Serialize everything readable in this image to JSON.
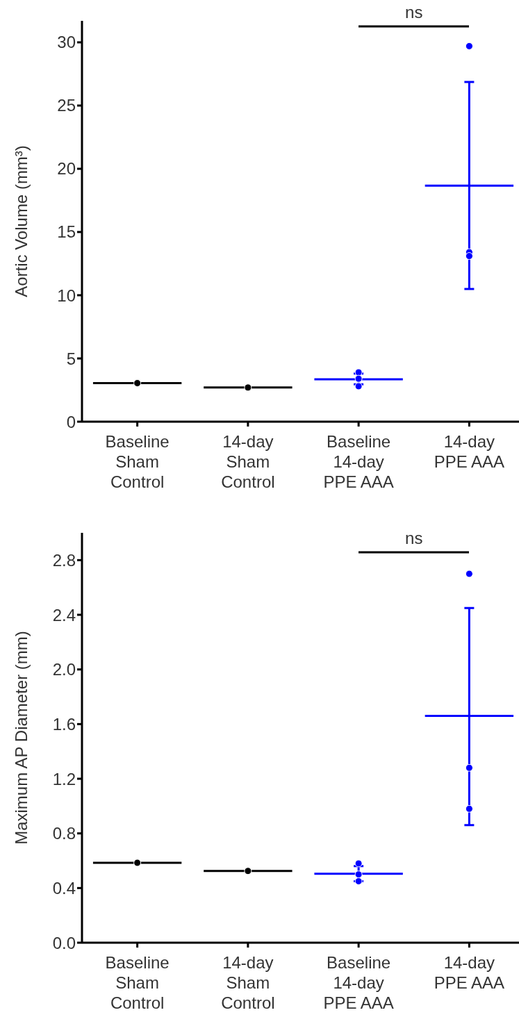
{
  "chart_data": [
    {
      "type": "box",
      "ylabel": "Aortic Volume (mm³)",
      "categories": [
        "Baseline\nSham\nControl",
        "14-day\nSham\nControl",
        "Baseline\n14-day\nPPE AAA",
        "14-day\nPPE AAA"
      ],
      "ylim": [
        0,
        31.7
      ],
      "yticks": [
        0,
        5,
        10,
        15,
        20,
        25,
        30
      ],
      "annotations": [
        "ns"
      ],
      "grid": false,
      "legend": false,
      "boxes": [
        {
          "low": 3.05,
          "q1": 3.05,
          "median": 3.05,
          "q3": 3.05,
          "high": 3.05
        },
        {
          "low": 2.7,
          "q1": 2.7,
          "median": 2.7,
          "q3": 2.7,
          "high": 2.7
        },
        {
          "low": 2.95,
          "q1": 3.35,
          "median": 3.35,
          "q3": 3.35,
          "high": 3.8
        },
        {
          "low": 10.5,
          "q1": 18.66,
          "median": 18.66,
          "q3": 18.66,
          "high": 26.86
        }
      ],
      "colors": [
        "#000000",
        "#000000",
        "#0000ff",
        "#0000ff"
      ],
      "series": [
        {
          "type": "scatter",
          "marker": "circle",
          "x": [
            "Baseline\nSham\nControl",
            "14-day\nSham\nControl",
            "Baseline\n14-day\nPPE AAA",
            "Baseline\n14-day\nPPE AAA",
            "Baseline\n14-day\nPPE AAA",
            "14-day\nPPE AAA",
            "14-day\nPPE AAA",
            "14-day\nPPE AAA"
          ],
          "values": [
            3.05,
            2.7,
            3.9,
            3.4,
            2.8,
            29.7,
            13.4,
            13.1
          ],
          "colors": [
            "#000000",
            "#000000",
            "#0000ff",
            "#0000ff",
            "#0000ff",
            "#0000ff",
            "#0000ff",
            "#0000ff"
          ]
        }
      ]
    },
    {
      "type": "box",
      "ylabel": "Maximum AP Diameter (mm)",
      "categories": [
        "Baseline\nSham\nControl",
        "14-day\nSham\nControl",
        "Baseline\n14-day\nPPE AAA",
        "14-day\nPPE AAA"
      ],
      "ylim": [
        0,
        3.0
      ],
      "yticks": [
        {
          "value": 0,
          "label": "0.0"
        },
        0.4,
        0.8,
        1.2,
        1.6,
        {
          "value": 2,
          "label": "2.0"
        },
        2.4,
        2.8
      ],
      "annotations": [
        "ns"
      ],
      "grid": false,
      "legend": false,
      "boxes": [
        {
          "low": 0.585,
          "q1": 0.585,
          "median": 0.585,
          "q3": 0.585,
          "high": 0.585
        },
        {
          "low": 0.525,
          "q1": 0.525,
          "median": 0.525,
          "q3": 0.525,
          "high": 0.525
        },
        {
          "low": 0.45,
          "q1": 0.505,
          "median": 0.505,
          "q3": 0.505,
          "high": 0.56
        },
        {
          "low": 0.86,
          "q1": 1.66,
          "median": 1.66,
          "q3": 1.66,
          "high": 2.45
        }
      ],
      "colors": [
        "#000000",
        "#000000",
        "#0000ff",
        "#0000ff"
      ],
      "series": [
        {
          "type": "scatter",
          "marker": "circle",
          "x": [
            "Baseline\nSham\nControl",
            "14-day\nSham\nControl",
            "Baseline\n14-day\nPPE AAA",
            "Baseline\n14-day\nPPE AAA",
            "Baseline\n14-day\nPPE AAA",
            "14-day\nPPE AAA",
            "14-day\nPPE AAA",
            "14-day\nPPE AAA"
          ],
          "values": [
            0.585,
            0.525,
            0.58,
            0.5,
            0.45,
            2.7,
            1.28,
            0.98
          ],
          "colors": [
            "#000000",
            "#000000",
            "#0000ff",
            "#0000ff",
            "#0000ff",
            "#0000ff",
            "#0000ff",
            "#0000ff"
          ]
        }
      ]
    }
  ]
}
